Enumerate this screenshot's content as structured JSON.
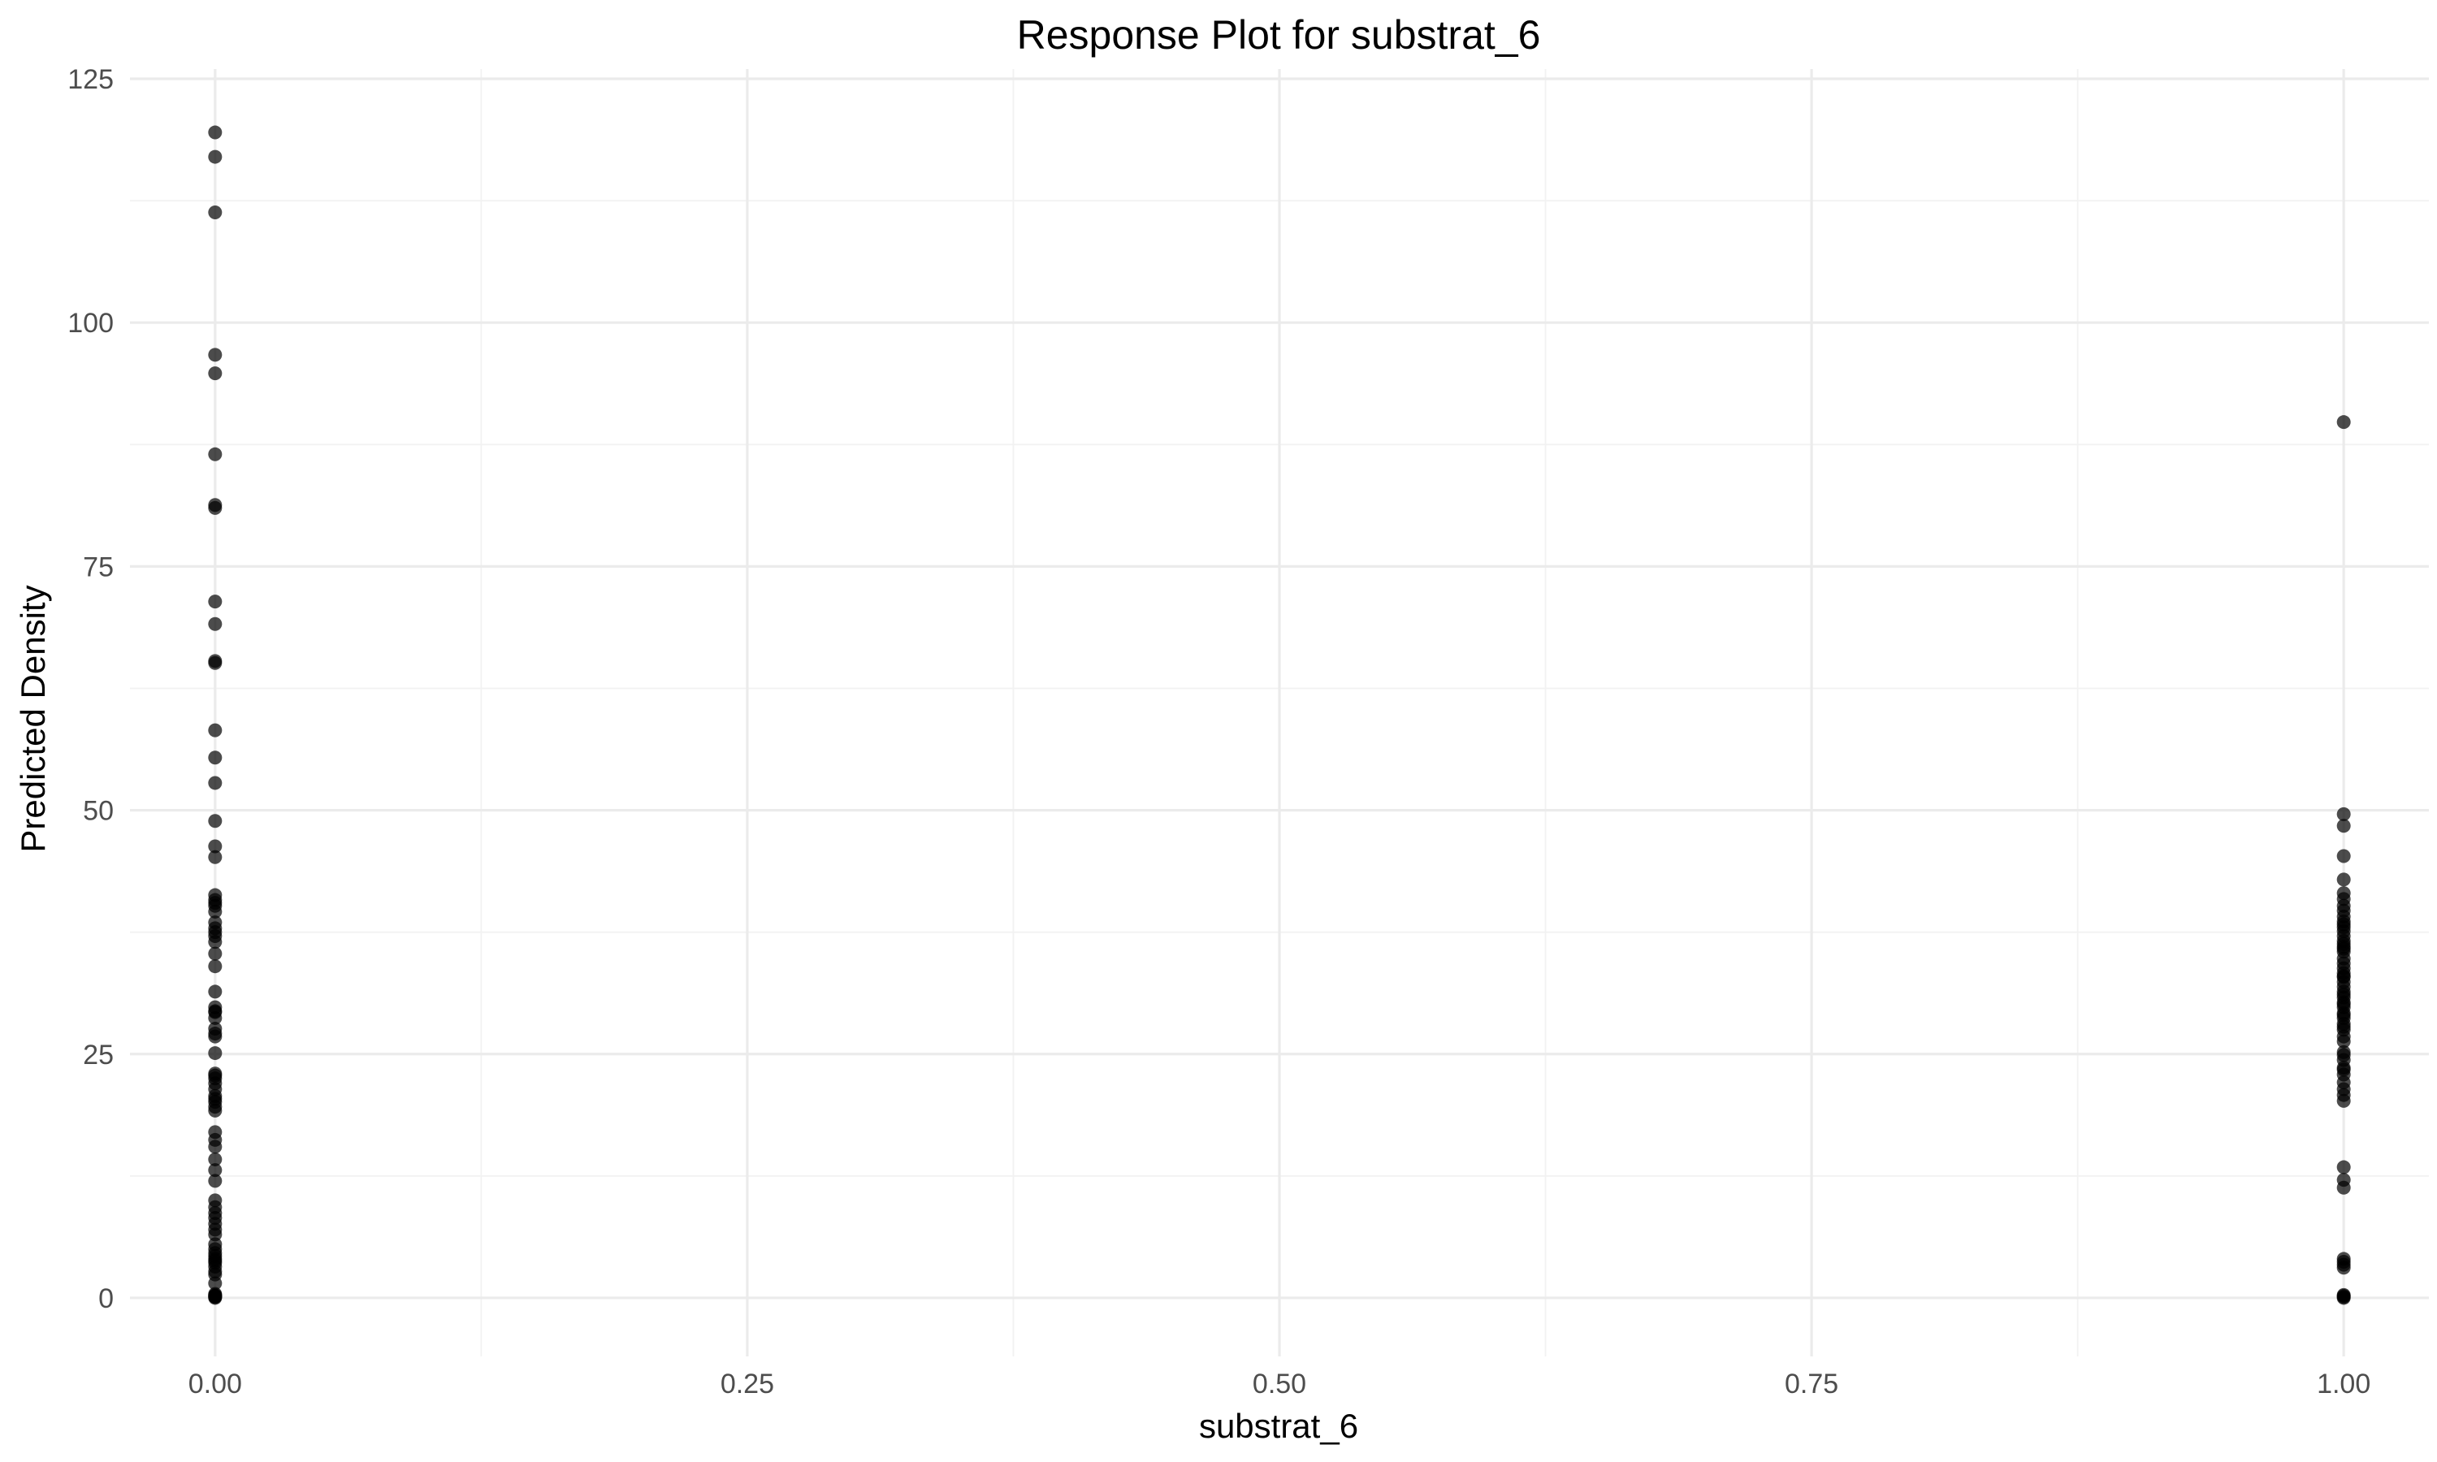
{
  "chart_data": {
    "type": "scatter",
    "title": "Response Plot for substrat_6",
    "xlabel": "substrat_6",
    "ylabel": "Predicted Density",
    "xlim": [
      -0.04,
      1.04
    ],
    "ylim": [
      -6,
      126
    ],
    "x_ticks": [
      0,
      0.25,
      0.5,
      0.75,
      1
    ],
    "x_tick_labels": [
      "0.00",
      "0.25",
      "0.50",
      "0.75",
      "1.00"
    ],
    "y_ticks": [
      0,
      25,
      50,
      75,
      100,
      125
    ],
    "y_tick_labels": [
      "0",
      "25",
      "50",
      "75",
      "100",
      "125"
    ],
    "grid": true,
    "legend": "none",
    "point_color": "#000000",
    "series": [
      {
        "x": [
          0,
          0,
          0,
          0,
          0,
          0,
          0,
          0,
          0,
          0,
          0,
          0,
          0,
          0,
          0,
          0,
          0,
          0,
          0,
          0,
          0,
          0,
          0,
          0,
          0,
          0,
          0,
          0,
          0,
          0,
          0,
          0,
          0,
          0,
          0,
          0,
          0,
          0,
          0,
          0,
          0,
          0,
          0,
          0,
          0,
          0,
          0,
          0,
          0,
          0,
          0,
          0,
          0,
          0,
          0,
          0,
          0,
          0,
          0,
          0,
          0,
          0,
          0,
          0,
          0,
          0,
          0,
          0,
          0,
          0,
          0,
          0,
          0,
          0,
          0,
          0,
          0,
          0,
          0,
          0
        ],
        "y": [
          119.5,
          117,
          111.3,
          96.7,
          94.8,
          86.5,
          81.3,
          81,
          71.4,
          69.1,
          65.3,
          65.1,
          58.2,
          55.4,
          52.8,
          48.9,
          46.3,
          45.2,
          41.3,
          40.8,
          40.2,
          39.6,
          38.5,
          37.9,
          37.1,
          36.5,
          35.3,
          34,
          31.4,
          29.8,
          29.4,
          28.7,
          27.6,
          27.1,
          26.8,
          25.1,
          23,
          22.5,
          22,
          21.4,
          20.7,
          20.1,
          19.6,
          19.2,
          17,
          16.2,
          15.5,
          14.2,
          13.1,
          10,
          9.3,
          8.2,
          7.6,
          7,
          6.5,
          5.5,
          5,
          4.3,
          4,
          3.6,
          3.2,
          2.7,
          2.4,
          1.5,
          0.2,
          0.1,
          0,
          0.3,
          0.1,
          0.2,
          3.8,
          4.6,
          8.7,
          29.3,
          22.8,
          20.4,
          40.5,
          37.5,
          12,
          0.4
        ]
      },
      {
        "x": [
          1,
          1,
          1,
          1,
          1,
          1,
          1,
          1,
          1,
          1,
          1,
          1,
          1,
          1,
          1,
          1,
          1,
          1,
          1,
          1,
          1,
          1,
          1,
          1,
          1,
          1,
          1,
          1,
          1,
          1,
          1,
          1,
          1,
          1,
          1,
          1,
          1,
          1,
          1,
          1,
          1,
          1,
          1,
          1,
          1,
          1,
          1,
          1,
          1,
          1,
          1,
          1,
          1,
          1,
          1,
          1,
          1,
          1,
          1,
          1,
          1,
          1,
          1
        ],
        "y": [
          89.8,
          49.6,
          48.4,
          45.3,
          42.9,
          41.5,
          40.9,
          40.2,
          39.7,
          39.1,
          38.6,
          38,
          37.6,
          37.1,
          36.6,
          36,
          35.5,
          34.8,
          33.8,
          33.3,
          32.9,
          32.4,
          31.9,
          31.4,
          30.8,
          30.3,
          29.8,
          29.2,
          28.7,
          28.1,
          27.5,
          26.8,
          26.3,
          25.2,
          24.4,
          23.6,
          22.9,
          22.1,
          21.4,
          20.8,
          20.2,
          13.4,
          12.1,
          11.3,
          4,
          3.7,
          3.4,
          3.1,
          0.3,
          0.1,
          0,
          27.8,
          30.1,
          31.1,
          33,
          35.8,
          23.4,
          36.3,
          24.9,
          38.3,
          34.3,
          29,
          0.2
        ]
      }
    ]
  }
}
